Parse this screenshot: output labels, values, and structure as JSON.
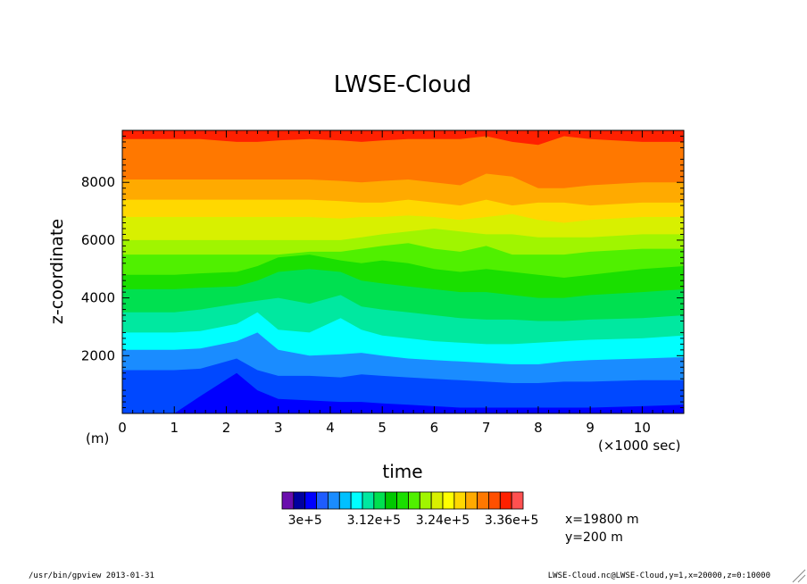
{
  "chart_data": {
    "type": "heatmap",
    "title": "LWSE-Cloud",
    "xlabel": "time",
    "x_unit": "(×1000 sec)",
    "ylabel": "z-coordinate",
    "y_unit": "(m)",
    "xlim": [
      0,
      10.8
    ],
    "ylim": [
      0,
      9800
    ],
    "x_ticks": [
      "0",
      "1",
      "2",
      "3",
      "4",
      "5",
      "6",
      "7",
      "8",
      "9",
      "10"
    ],
    "y_ticks": [
      "2000",
      "4000",
      "6000",
      "8000"
    ],
    "colorbar_labels": [
      "3e+5",
      "3.12e+5",
      "3.24e+5",
      "3.36e+5"
    ],
    "contour_levels": [
      296000.0,
      298000.0,
      300000.0,
      302000.0,
      304000.0,
      306000.0,
      308000.0,
      310000.0,
      312000.0,
      314000.0,
      316000.0,
      318000.0,
      320000.0,
      322000.0,
      324000.0,
      326000.0,
      328000.0,
      330000.0,
      332000.0,
      334000.0,
      336000.0,
      338000.0
    ],
    "colors": [
      "#6a0dad",
      "#0000a0",
      "#0000ff",
      "#1e5cff",
      "#1a8cff",
      "#00c0ff",
      "#00ffff",
      "#00e8a0",
      "#00e050",
      "#00c800",
      "#1adf00",
      "#50f000",
      "#a0f500",
      "#d8f000",
      "#ffff00",
      "#ffd800",
      "#ffaa00",
      "#ff7800",
      "#ff5000",
      "#ff2000",
      "#ff5050"
    ],
    "contours_z_at_x": {
      "x": [
        0,
        1,
        1.5,
        2.2,
        2.6,
        3,
        3.6,
        4.2,
        4.6,
        5,
        5.5,
        6,
        6.5,
        7,
        7.5,
        8,
        8.5,
        9,
        10,
        10.8
      ],
      "levels": [
        [
          0,
          0,
          600,
          1400,
          800,
          500,
          450,
          400,
          400,
          350,
          300,
          250,
          200,
          200,
          200,
          200,
          200,
          200,
          250,
          300
        ],
        [
          1500,
          1500,
          1550,
          1900,
          1500,
          1300,
          1300,
          1250,
          1350,
          1300,
          1250,
          1200,
          1150,
          1100,
          1050,
          1050,
          1100,
          1100,
          1150,
          1150
        ],
        [
          2200,
          2200,
          2250,
          2500,
          2800,
          2200,
          2000,
          2050,
          2100,
          2000,
          1900,
          1850,
          1800,
          1750,
          1700,
          1700,
          1800,
          1850,
          1900,
          1950
        ],
        [
          2800,
          2800,
          2850,
          3100,
          3500,
          2900,
          2800,
          3300,
          2900,
          2700,
          2600,
          2500,
          2450,
          2400,
          2400,
          2450,
          2500,
          2550,
          2600,
          2700
        ],
        [
          3500,
          3500,
          3600,
          3800,
          3900,
          4000,
          3800,
          4100,
          3700,
          3600,
          3500,
          3400,
          3300,
          3250,
          3250,
          3200,
          3200,
          3250,
          3300,
          3400
        ],
        [
          4300,
          4300,
          4350,
          4400,
          4600,
          4900,
          5000,
          4900,
          4600,
          4500,
          4400,
          4300,
          4200,
          4200,
          4100,
          4000,
          4000,
          4100,
          4200,
          4300
        ],
        [
          4800,
          4800,
          4850,
          4900,
          5100,
          5400,
          5500,
          5300,
          5200,
          5300,
          5200,
          5000,
          4900,
          5000,
          4900,
          4800,
          4700,
          4800,
          5000,
          5100
        ],
        [
          5500,
          5500,
          5500,
          5500,
          5500,
          5500,
          5600,
          5600,
          5700,
          5800,
          5900,
          5700,
          5600,
          5800,
          5500,
          5500,
          5500,
          5600,
          5700,
          5700
        ],
        [
          6000,
          6000,
          6000,
          6000,
          6000,
          6000,
          6000,
          6000,
          6100,
          6200,
          6300,
          6400,
          6300,
          6200,
          6200,
          6100,
          6100,
          6100,
          6200,
          6200
        ],
        [
          6800,
          6800,
          6800,
          6800,
          6800,
          6800,
          6800,
          6750,
          6800,
          6800,
          6850,
          6800,
          6700,
          6800,
          6900,
          6700,
          6600,
          6700,
          6800,
          6800
        ],
        [
          7400,
          7400,
          7400,
          7400,
          7400,
          7400,
          7400,
          7350,
          7300,
          7300,
          7400,
          7300,
          7200,
          7400,
          7200,
          7300,
          7300,
          7200,
          7300,
          7300
        ],
        [
          8100,
          8100,
          8100,
          8100,
          8100,
          8100,
          8100,
          8050,
          8000,
          8050,
          8100,
          8000,
          7900,
          8300,
          8200,
          7800,
          7800,
          7900,
          8000,
          8000
        ],
        [
          9500,
          9500,
          9500,
          9400,
          9400,
          9450,
          9500,
          9450,
          9400,
          9450,
          9500,
          9500,
          9500,
          9600,
          9400,
          9300,
          9600,
          9500,
          9400,
          9400
        ]
      ]
    },
    "band_colors": [
      "#0048ff",
      "#1a8cff",
      "#00ffff",
      "#00e8a0",
      "#00e050",
      "#1adf00",
      "#50f000",
      "#a0f500",
      "#d8f000",
      "#ffd800",
      "#ffaa00",
      "#ff7800",
      "#ff2000",
      "#ff5050"
    ],
    "lowest_band_color": "#0000ff",
    "grid": false,
    "legend": "bottom"
  },
  "info": {
    "x_pos": "x=19800  m",
    "y_pos": "y=200  m"
  },
  "footer": {
    "left": "/usr/bin/gpview  2013-01-31",
    "right": "LWSE-Cloud.nc@LWSE-Cloud,y=1,x=20000,z=0:10000"
  }
}
